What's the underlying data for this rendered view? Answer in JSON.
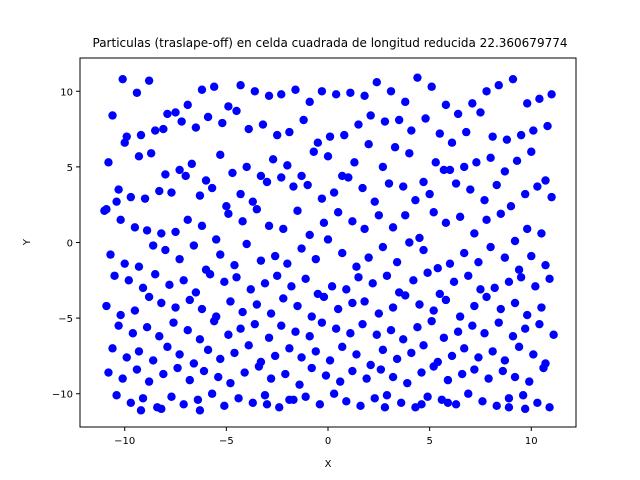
{
  "chart_data": {
    "type": "scatter",
    "title": "Particulas (traslape-off) en celda cuadrada de longitud reducida 22.360679774",
    "xlabel": "X",
    "ylabel": "Y",
    "xlim": [
      -12.2,
      12.2
    ],
    "ylim": [
      -12.2,
      12.2
    ],
    "xticks": [
      -10,
      -5,
      0,
      5,
      10
    ],
    "yticks": [
      -10,
      -5,
      0,
      5,
      10
    ],
    "xtick_labels": [
      "−10",
      "−5",
      "0",
      "5",
      "10"
    ],
    "ytick_labels": [
      "−10",
      "−5",
      "0",
      "5",
      "10"
    ],
    "grid": false,
    "marker_color": "#0000ff",
    "series": [
      {
        "x": [
          -10.9,
          -10.3,
          -10.1,
          -9.4,
          -8.8,
          -8.1,
          -7.5,
          -6.9,
          -6.2,
          -5.6,
          -4.9,
          -4.3,
          -3.6,
          -2.9,
          -2.3,
          -1.6,
          -0.9,
          -0.3,
          0.4,
          1.1,
          1.8,
          2.4,
          3.1,
          3.8,
          4.4,
          5.1,
          5.8,
          6.4,
          7.1,
          7.8,
          8.4,
          9.1,
          9.8,
          10.4,
          11.0,
          -10.6,
          -9.9,
          -9.2,
          -8.5,
          -7.9,
          -7.2,
          -6.5,
          -5.9,
          -5.2,
          -4.5,
          -3.9,
          -3.2,
          -2.5,
          -1.9,
          -1.2,
          -0.5,
          0.1,
          0.8,
          1.5,
          2.1,
          2.8,
          3.5,
          4.1,
          4.8,
          5.5,
          6.1,
          6.8,
          7.5,
          8.1,
          8.8,
          9.5,
          10.1,
          10.8,
          -10.8,
          -10.0,
          -9.3,
          -8.7,
          -8.0,
          -7.3,
          -6.7,
          -6.0,
          -5.3,
          -4.7,
          -4.0,
          -3.3,
          -2.7,
          -2.0,
          -1.3,
          -0.7,
          0.0,
          0.7,
          1.3,
          2.0,
          2.7,
          3.3,
          4.0,
          4.7,
          5.3,
          6.0,
          6.7,
          7.3,
          8.0,
          8.7,
          9.3,
          10.0,
          10.7,
          -10.4,
          -9.7,
          -9.0,
          -8.3,
          -7.7,
          -7.0,
          -6.3,
          -5.7,
          -5.0,
          -4.3,
          -3.7,
          -3.0,
          -2.3,
          -1.7,
          -1.0,
          -0.3,
          0.3,
          1.0,
          1.7,
          2.3,
          3.0,
          3.7,
          4.3,
          5.0,
          5.7,
          6.3,
          7.0,
          7.7,
          8.3,
          9.0,
          9.7,
          10.3,
          11.0,
          -11.0,
          -10.2,
          -9.5,
          -8.9,
          -8.2,
          -7.5,
          -6.9,
          -6.2,
          -5.5,
          -4.9,
          -4.2,
          -3.5,
          -2.9,
          -2.2,
          -1.5,
          -0.9,
          -0.2,
          0.5,
          1.2,
          1.8,
          2.5,
          3.2,
          3.8,
          4.5,
          5.2,
          5.8,
          6.5,
          7.2,
          7.8,
          8.5,
          9.2,
          9.8,
          10.5,
          -10.7,
          -10.0,
          -9.3,
          -8.6,
          -8.0,
          -7.3,
          -6.6,
          -6.0,
          -5.3,
          -4.6,
          -4.0,
          -3.3,
          -2.6,
          -2.0,
          -1.3,
          -0.6,
          0.0,
          0.7,
          1.4,
          2.0,
          2.7,
          3.4,
          4.0,
          4.7,
          5.4,
          6.0,
          6.7,
          7.4,
          8.0,
          8.7,
          9.4,
          10.0,
          10.7,
          -10.5,
          -9.8,
          -9.1,
          -8.5,
          -7.8,
          -7.1,
          -6.5,
          -5.8,
          -5.1,
          -4.5,
          -3.8,
          -3.1,
          -2.5,
          -1.8,
          -1.1,
          -0.5,
          0.2,
          0.9,
          1.5,
          2.2,
          2.9,
          3.5,
          4.2,
          4.9,
          5.5,
          6.2,
          6.9,
          7.5,
          8.2,
          8.9,
          9.5,
          10.2,
          10.9,
          -10.9,
          -10.2,
          -9.5,
          -8.8,
          -8.2,
          -7.5,
          -6.8,
          -6.2,
          -5.5,
          -4.8,
          -4.2,
          -3.5,
          -2.8,
          -2.2,
          -1.5,
          -0.8,
          -0.2,
          0.5,
          1.2,
          1.8,
          2.5,
          3.2,
          3.8,
          4.5,
          5.2,
          5.8,
          6.5,
          7.2,
          7.8,
          8.5,
          9.2,
          9.8,
          10.5,
          -10.3,
          -9.6,
          -8.9,
          -8.3,
          -7.6,
          -6.9,
          -6.3,
          -5.6,
          -4.9,
          -4.3,
          -3.6,
          -2.9,
          -2.3,
          -1.6,
          -0.9,
          -0.3,
          0.4,
          1.1,
          1.7,
          2.4,
          3.1,
          3.7,
          4.4,
          5.1,
          5.7,
          6.4,
          7.1,
          7.7,
          8.4,
          9.1,
          9.7,
          10.4,
          11.1,
          -10.6,
          -9.9,
          -9.3,
          -8.6,
          -7.9,
          -7.3,
          -6.6,
          -5.9,
          -5.3,
          -4.6,
          -3.9,
          -3.3,
          -2.6,
          -1.9,
          -1.3,
          -0.6,
          0.1,
          0.7,
          1.4,
          2.1,
          2.7,
          3.4,
          4.1,
          4.7,
          5.4,
          6.1,
          6.7,
          7.4,
          8.1,
          8.7,
          9.4,
          10.1,
          10.7,
          -10.8,
          -10.1,
          -9.4,
          -8.8,
          -8.1,
          -7.4,
          -6.8,
          -6.1,
          -5.4,
          -4.8,
          -4.1,
          -3.4,
          -2.8,
          -2.1,
          -1.4,
          -0.8,
          -0.1,
          0.6,
          1.2,
          1.9,
          2.6,
          3.2,
          3.9,
          4.6,
          5.2,
          5.9,
          6.6,
          7.2,
          7.9,
          8.6,
          9.2,
          9.9,
          10.6,
          -10.4,
          -9.7,
          -9.1,
          -8.4,
          -7.7,
          -7.1,
          -6.4,
          -5.7,
          -5.1,
          -4.4,
          -3.7,
          -3.1,
          -2.4,
          -1.7,
          -1.1,
          -0.4,
          0.3,
          0.9,
          1.6,
          2.3,
          2.9,
          3.6,
          4.3,
          4.9,
          5.6,
          6.3,
          6.9,
          7.6,
          8.3,
          8.9,
          9.6,
          10.3,
          10.9,
          -9.2,
          -6.3,
          -3.0,
          2.8,
          5.9,
          8.9,
          -8.2,
          -1.9,
          4.6,
          9.7
        ],
        "y": [
          2.2,
          3.5,
          10.8,
          9.9,
          10.7,
          7.5,
          8.6,
          9.1,
          10.1,
          10.3,
          9.0,
          10.4,
          10.0,
          9.7,
          9.8,
          10.1,
          9.3,
          10.0,
          9.8,
          9.9,
          9.7,
          10.6,
          10.0,
          9.3,
          10.9,
          10.3,
          9.1,
          8.5,
          9.2,
          10.0,
          10.4,
          10.8,
          9.2,
          9.5,
          9.8,
          8.4,
          7.0,
          7.1,
          7.4,
          8.5,
          8.0,
          7.6,
          8.3,
          7.9,
          8.7,
          7.5,
          7.8,
          7.1,
          7.3,
          8.1,
          6.6,
          7.0,
          7.1,
          7.8,
          8.4,
          8.0,
          8.1,
          7.4,
          8.2,
          7.2,
          6.6,
          7.3,
          8.6,
          7.0,
          6.8,
          7.1,
          7.4,
          7.7,
          5.3,
          6.6,
          5.7,
          5.9,
          4.5,
          4.8,
          5.2,
          4.1,
          5.8,
          4.6,
          5.0,
          4.4,
          5.5,
          5.1,
          4.4,
          6.0,
          5.7,
          4.4,
          5.3,
          6.5,
          5.0,
          6.3,
          5.9,
          4.0,
          5.3,
          4.8,
          5.0,
          5.3,
          5.6,
          4.7,
          5.4,
          6.0,
          4.1,
          2.7,
          3.0,
          2.9,
          3.4,
          3.3,
          4.4,
          3.1,
          3.6,
          2.4,
          3.2,
          2.7,
          4.0,
          4.3,
          3.7,
          3.8,
          2.9,
          3.3,
          4.3,
          3.6,
          2.7,
          3.9,
          3.7,
          2.8,
          3.2,
          4.8,
          3.9,
          3.5,
          2.8,
          3.8,
          2.4,
          3.2,
          3.7,
          3.0,
          2.1,
          1.5,
          1.0,
          0.8,
          0.6,
          0.7,
          1.5,
          1.1,
          0.2,
          1.9,
          1.4,
          2.2,
          1.1,
          0.9,
          2.1,
          0.5,
          1.3,
          2.0,
          1.4,
          0.9,
          1.8,
          1.0,
          1.8,
          0.3,
          2.0,
          1.3,
          1.7,
          0.6,
          1.5,
          1.9,
          0.1,
          0.9,
          0.6,
          -0.8,
          -1.4,
          -1.6,
          -0.2,
          -0.5,
          -1.1,
          -0.2,
          -1.8,
          -0.8,
          -1.5,
          -0.1,
          -1.2,
          -0.9,
          -1.4,
          -0.4,
          -1.1,
          0.2,
          -0.7,
          -1.6,
          -1.0,
          -0.3,
          -1.3,
          0.0,
          -0.5,
          -1.7,
          -1.4,
          -0.7,
          -1.3,
          -0.3,
          -1.0,
          -1.8,
          -0.9,
          -1.5,
          -2.2,
          -2.5,
          -3.0,
          -2.1,
          -2.8,
          -2.5,
          -3.3,
          -2.1,
          -2.6,
          -2.3,
          -3.1,
          -2.7,
          -2.2,
          -2.9,
          -2.4,
          -3.4,
          -2.9,
          -3.1,
          -2.3,
          -2.7,
          -2.2,
          -3.3,
          -2.5,
          -2.0,
          -3.4,
          -2.6,
          -2.2,
          -3.1,
          -3.0,
          -2.6,
          -2.3,
          -2.9,
          -2.4,
          -4.2,
          -4.8,
          -4.5,
          -3.6,
          -4.0,
          -4.3,
          -3.8,
          -4.4,
          -4.9,
          -3.9,
          -4.6,
          -4.1,
          -4.7,
          -3.7,
          -4.2,
          -4.9,
          -3.6,
          -4.4,
          -4.0,
          -3.9,
          -4.7,
          -4.3,
          -3.5,
          -4.1,
          -4.5,
          -3.8,
          -4.9,
          -4.2,
          -3.6,
          -4.4,
          -4.0,
          -4.8,
          -4.3,
          -5.5,
          -6.0,
          -5.6,
          -6.2,
          -5.3,
          -5.8,
          -6.4,
          -5.2,
          -6.1,
          -5.7,
          -5.4,
          -6.3,
          -5.5,
          -5.9,
          -6.2,
          -5.3,
          -5.7,
          -6.0,
          -5.4,
          -6.1,
          -5.8,
          -6.4,
          -5.6,
          -5.2,
          -6.3,
          -5.9,
          -5.5,
          -6.0,
          -5.3,
          -6.2,
          -5.7,
          -5.4,
          -6.1,
          -7.0,
          -7.6,
          -7.2,
          -7.8,
          -6.9,
          -7.4,
          -8.0,
          -7.1,
          -7.7,
          -7.3,
          -6.8,
          -7.9,
          -7.5,
          -7.0,
          -7.6,
          -7.2,
          -7.8,
          -6.9,
          -7.4,
          -8.1,
          -7.1,
          -7.7,
          -7.3,
          -6.8,
          -7.9,
          -7.5,
          -7.0,
          -7.6,
          -7.2,
          -7.8,
          -6.9,
          -7.4,
          -8.0,
          -8.6,
          -9.0,
          -8.4,
          -9.2,
          -8.7,
          -8.3,
          -9.1,
          -8.5,
          -8.9,
          -9.3,
          -8.6,
          -8.2,
          -9.0,
          -8.7,
          -9.4,
          -8.3,
          -8.8,
          -9.2,
          -8.5,
          -9.0,
          -8.4,
          -8.9,
          -9.3,
          -8.6,
          -8.2,
          -9.1,
          -8.7,
          -8.4,
          -9.0,
          -8.5,
          -8.9,
          -9.2,
          -8.3,
          -10.1,
          -10.6,
          -10.3,
          -10.9,
          -10.2,
          -10.7,
          -10.4,
          -10.0,
          -10.8,
          -10.3,
          -10.6,
          -10.1,
          -10.9,
          -10.4,
          -10.2,
          -10.7,
          -10.0,
          -10.5,
          -10.8,
          -10.3,
          -10.1,
          -10.6,
          -10.9,
          -10.2,
          -10.4,
          -10.7,
          -10.0,
          -10.5,
          -10.8,
          -10.3,
          -10.1,
          -10.6,
          -10.9,
          -11.1,
          -11.1,
          -10.7,
          -10.9,
          -10.6,
          -10.9,
          -11.0,
          -10.4,
          -10.7,
          -11.0
        ]
      }
    ]
  }
}
